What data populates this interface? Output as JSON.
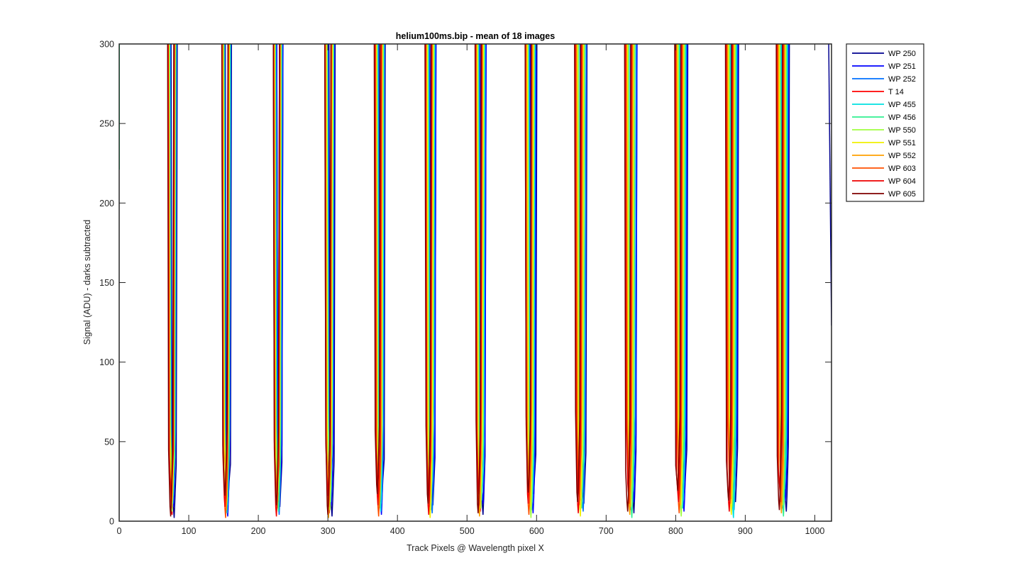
{
  "chart_data": {
    "type": "line",
    "title": "helium100ms.bip - mean of 18 images",
    "xlabel": "Track Pixels @ Wavelength pixel X",
    "ylabel": "Signal (ADU) - darks subtracted",
    "xlim": [
      0,
      1024
    ],
    "ylim": [
      0,
      300
    ],
    "xticks": [
      0,
      100,
      200,
      300,
      400,
      500,
      600,
      700,
      800,
      900,
      1000
    ],
    "yticks": [
      0,
      50,
      100,
      150,
      200,
      250,
      300
    ],
    "grid": false,
    "legend_position": "outside-top-right",
    "valley_centers": [
      76,
      154,
      228,
      302,
      374,
      447,
      519,
      591,
      663,
      735,
      807,
      880,
      953
    ],
    "series": [
      {
        "name": "WP 250",
        "color": "#00008f",
        "offset": 2.6
      },
      {
        "name": "WP 251",
        "color": "#0000ff",
        "offset": 2.2
      },
      {
        "name": "WP 252",
        "color": "#0070ff",
        "offset": 1.8
      },
      {
        "name": "T 14",
        "color": "#ff0000",
        "offset": -0.2
      },
      {
        "name": "WP 455",
        "color": "#00e0e0",
        "offset": 1.2
      },
      {
        "name": "WP 456",
        "color": "#30f090",
        "offset": 0.8
      },
      {
        "name": "WP 550",
        "color": "#a0ff40",
        "offset": 0.4
      },
      {
        "name": "WP 551",
        "color": "#f0f000",
        "offset": 0.0
      },
      {
        "name": "WP 552",
        "color": "#ffa000",
        "offset": -0.6
      },
      {
        "name": "WP 603",
        "color": "#ff5000",
        "offset": -1.0
      },
      {
        "name": "WP 604",
        "color": "#ee0000",
        "offset": -1.4
      },
      {
        "name": "WP 605",
        "color": "#800000",
        "offset": -1.8
      }
    ]
  }
}
